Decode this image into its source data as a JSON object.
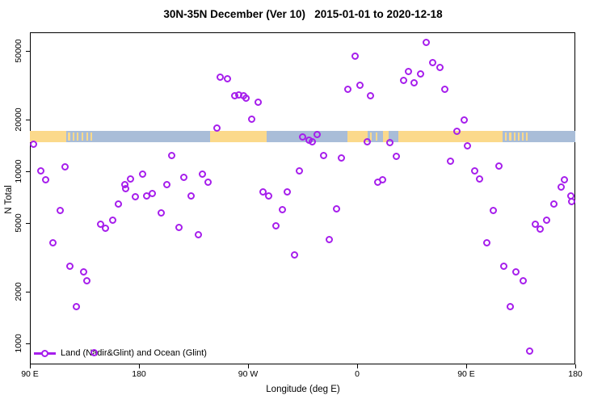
{
  "title": "30N-35N December (Ver 10)   2015-01-01 to 2020-12-18",
  "legend": {
    "label": "Land (Nadir&Glint) and Ocean (Glint)",
    "symbol": "open-circle-on-line"
  },
  "colors": {
    "point": "#a61eec",
    "land": "#fbd98b",
    "ocean": "#a9bdd8",
    "axis": "#000000",
    "background": "#ffffff"
  },
  "chart_data": {
    "type": "scatter",
    "title": "30N-35N December (Ver 10)   2015-01-01 to 2020-12-18",
    "xlabel": "Longitude (deg E)",
    "ylabel": "N Total",
    "x_axis": {
      "lim": [
        -270,
        180
      ],
      "ticks": [
        {
          "value": -270,
          "label": "90 E"
        },
        {
          "value": -180,
          "label": "180"
        },
        {
          "value": -90,
          "label": "90 W"
        },
        {
          "value": 0,
          "label": "0"
        },
        {
          "value": 90,
          "label": "90 E"
        },
        {
          "value": 180,
          "label": "180"
        }
      ]
    },
    "y_axis": {
      "scale": "log",
      "lim": [
        760,
        64000
      ],
      "ticks": [
        {
          "value": 1000,
          "label": "1000"
        },
        {
          "value": 2000,
          "label": "2000"
        },
        {
          "value": 5000,
          "label": "5000"
        },
        {
          "value": 10000,
          "label": "10000"
        },
        {
          "value": 20000,
          "label": "20000"
        },
        {
          "value": 50000,
          "label": "50000"
        }
      ]
    },
    "legend_label": "Land (Nadir&Glint) and Ocean (Glint)",
    "grid": false,
    "points": [
      [
        -267.3,
        14300
      ],
      [
        -260.7,
        10100
      ],
      [
        -257.3,
        8900
      ],
      [
        -251.3,
        3860
      ],
      [
        -245.3,
        5890
      ],
      [
        -240.7,
        10600
      ],
      [
        -237.3,
        2820
      ],
      [
        -232,
        1640
      ],
      [
        -226,
        2590
      ],
      [
        -222.7,
        2300
      ],
      [
        -216.7,
        880
      ],
      [
        -212,
        4900
      ],
      [
        -208,
        4650
      ],
      [
        -202,
        5220
      ],
      [
        -197.3,
        6420
      ],
      [
        -192,
        8400
      ],
      [
        -190.7,
        7900
      ],
      [
        -186.7,
        9000
      ],
      [
        -182.7,
        7100
      ],
      [
        -176.7,
        9600
      ],
      [
        -174,
        7230
      ],
      [
        -169.3,
        7390
      ],
      [
        -162,
        5700
      ],
      [
        -156.7,
        8400
      ],
      [
        -152.7,
        12300
      ],
      [
        -146.7,
        4740
      ],
      [
        -142.7,
        9200
      ],
      [
        -137.3,
        7230
      ],
      [
        -131.3,
        4260
      ],
      [
        -128,
        9580
      ],
      [
        -123.3,
        8650
      ],
      [
        -116,
        17900
      ],
      [
        -112.7,
        35400
      ],
      [
        -107.3,
        34300
      ],
      [
        -101.3,
        27600
      ],
      [
        -98,
        27900
      ],
      [
        -94,
        27600
      ],
      [
        -92,
        26700
      ],
      [
        -86.7,
        20000
      ],
      [
        -82,
        25100
      ],
      [
        -78,
        7600
      ],
      [
        -72.7,
        7230
      ],
      [
        -67.3,
        4800
      ],
      [
        -62,
        6000
      ],
      [
        -58,
        7630
      ],
      [
        -52,
        3250
      ],
      [
        -48,
        10100
      ],
      [
        -44.7,
        15800
      ],
      [
        -40,
        15200
      ],
      [
        -37.3,
        14800
      ],
      [
        -33.3,
        16400
      ],
      [
        -28,
        12300
      ],
      [
        -22.7,
        4000
      ],
      [
        -17.3,
        6080
      ],
      [
        -13.3,
        12000
      ],
      [
        -8,
        29800
      ],
      [
        -2,
        46900
      ],
      [
        2,
        31500
      ],
      [
        8,
        14800
      ],
      [
        11.3,
        27600
      ],
      [
        16.7,
        8650
      ],
      [
        21.3,
        8900
      ],
      [
        26.7,
        14600
      ],
      [
        32,
        12200
      ],
      [
        38,
        33600
      ],
      [
        42,
        37800
      ],
      [
        46.7,
        32800
      ],
      [
        52,
        36600
      ],
      [
        56.7,
        55800
      ],
      [
        62,
        42600
      ],
      [
        68,
        40300
      ],
      [
        72,
        30100
      ],
      [
        77.3,
        11500
      ],
      [
        82,
        17000
      ],
      [
        88,
        19800
      ],
      [
        91.3,
        14000
      ],
      [
        96.7,
        10100
      ],
      [
        101.3,
        9000
      ],
      [
        107.3,
        3860
      ],
      [
        112,
        5890
      ],
      [
        117.3,
        10700
      ],
      [
        120.7,
        2820
      ],
      [
        126,
        1640
      ],
      [
        131.3,
        2590
      ],
      [
        136.7,
        2300
      ],
      [
        142,
        900
      ],
      [
        146.7,
        4950
      ],
      [
        150.7,
        4600
      ],
      [
        156,
        5220
      ],
      [
        162,
        6420
      ],
      [
        168,
        8060
      ],
      [
        170.7,
        8900
      ],
      [
        176,
        7230
      ],
      [
        176.7,
        6700
      ]
    ],
    "map_strip": {
      "description": "land/ocean band for 30N-35N latitude zone",
      "n_value_top": 16500,
      "n_value_bottom": 14200,
      "land_segments": [
        [
          -270,
          -240
        ],
        [
          -121.3,
          -74.7
        ],
        [
          -8,
          8.7
        ],
        [
          21,
          26
        ],
        [
          33.7,
          120
        ]
      ],
      "island_segments": [
        [
          -238.5,
          -237
        ],
        [
          -235,
          -233.5
        ],
        [
          -231.5,
          -230
        ],
        [
          -227.5,
          -226
        ],
        [
          -223.5,
          -222.5
        ],
        [
          -220,
          -219
        ],
        [
          10.5,
          12
        ],
        [
          15,
          16.5
        ],
        [
          122,
          123.5
        ],
        [
          125.5,
          127
        ],
        [
          129,
          130.5
        ],
        [
          132.5,
          134
        ],
        [
          136,
          137.2
        ],
        [
          139,
          140
        ]
      ]
    }
  }
}
